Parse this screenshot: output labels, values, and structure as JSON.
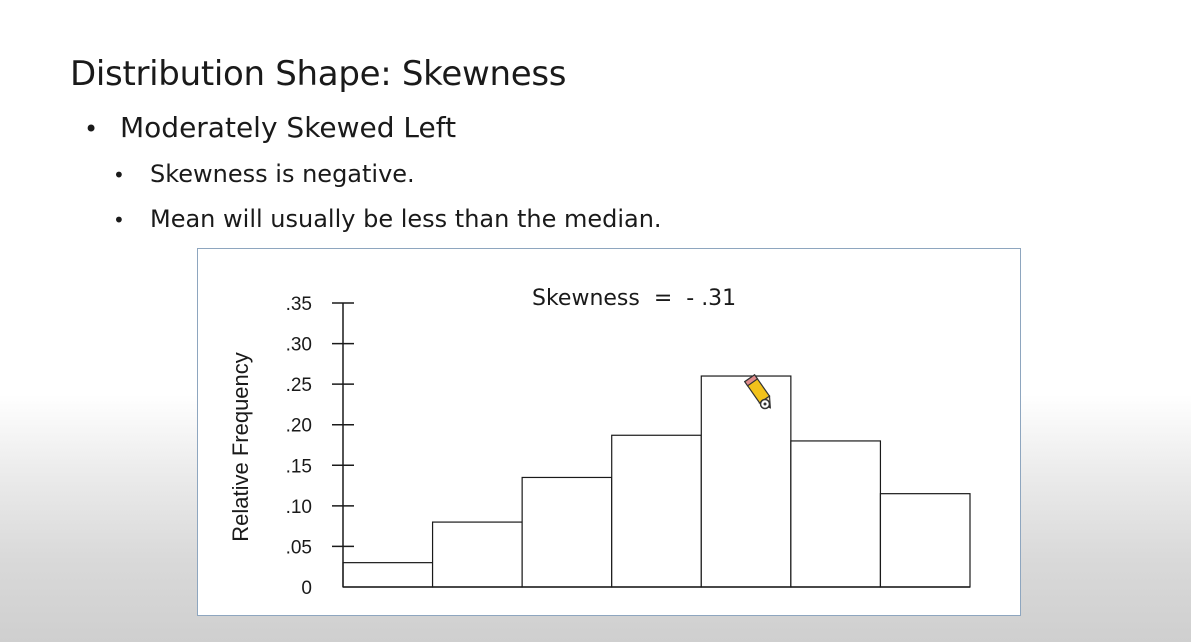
{
  "slide": {
    "title": "Distribution Shape:  Skewness",
    "bullet": "Moderately Skewed Left",
    "subbullets": [
      "Skewness is negative.",
      "Mean will usually be less than the median."
    ]
  },
  "cursor": {
    "icon": "pencil-cursor-icon"
  },
  "chart_data": {
    "type": "bar",
    "annotation": "Skewness  =  - .31",
    "ylabel": "Relative Frequency",
    "xlabel": "",
    "ylim": [
      0,
      0.35
    ],
    "yticks": [
      0,
      0.05,
      0.1,
      0.15,
      0.2,
      0.25,
      0.3,
      0.35
    ],
    "ytick_labels": [
      "0",
      ".05",
      ".10",
      ".15",
      ".20",
      ".25",
      ".30",
      ".35"
    ],
    "values": [
      0.03,
      0.08,
      0.135,
      0.187,
      0.26,
      0.18,
      0.115
    ],
    "grid": false,
    "bar_fill": "#ffffff",
    "bar_edge": "#1a1a1a"
  }
}
